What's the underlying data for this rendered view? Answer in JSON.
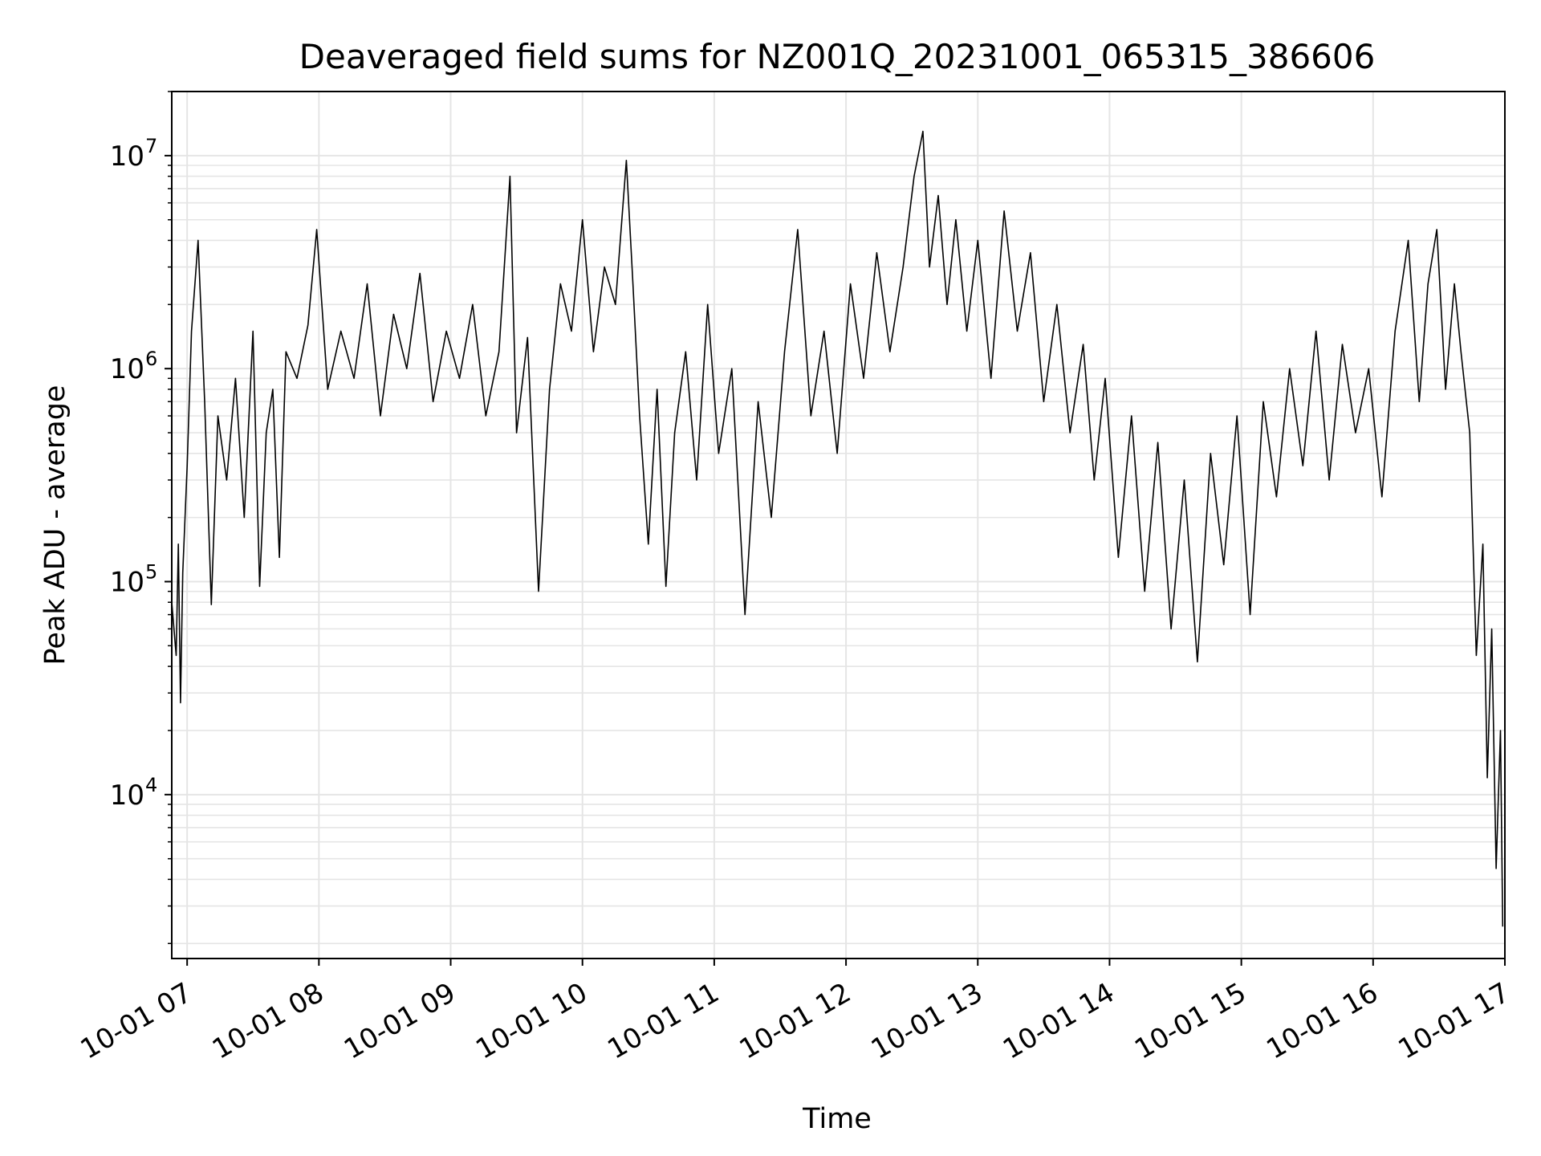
{
  "colors": {
    "line": "#000000",
    "grid": "#e5e5e5",
    "background": "#ffffff"
  },
  "chart_data": {
    "type": "line",
    "title": "Deaveraged field sums for NZ001Q_20231001_065315_386606",
    "xlabel": "Time",
    "ylabel": "Peak ADU - average",
    "yscale": "log",
    "xlim": [
      "2023-10-01 06:53",
      "2023-10-01 17:00"
    ],
    "ylim": [
      1700,
      20000000
    ],
    "grid": true,
    "x_ticks": [
      {
        "value": "2023-10-01 07:00",
        "label": "10-01 07"
      },
      {
        "value": "2023-10-01 08:00",
        "label": "10-01 08"
      },
      {
        "value": "2023-10-01 09:00",
        "label": "10-01 09"
      },
      {
        "value": "2023-10-01 10:00",
        "label": "10-01 10"
      },
      {
        "value": "2023-10-01 11:00",
        "label": "10-01 11"
      },
      {
        "value": "2023-10-01 12:00",
        "label": "10-01 12"
      },
      {
        "value": "2023-10-01 13:00",
        "label": "10-01 13"
      },
      {
        "value": "2023-10-01 14:00",
        "label": "10-01 14"
      },
      {
        "value": "2023-10-01 15:00",
        "label": "10-01 15"
      },
      {
        "value": "2023-10-01 16:00",
        "label": "10-01 16"
      },
      {
        "value": "2023-10-01 17:00",
        "label": "10-01 17"
      }
    ],
    "y_ticks": [
      {
        "value": 10000,
        "base": "10",
        "exp": "4"
      },
      {
        "value": 100000,
        "base": "10",
        "exp": "5"
      },
      {
        "value": 1000000,
        "base": "10",
        "exp": "6"
      },
      {
        "value": 10000000,
        "base": "10",
        "exp": "7"
      }
    ],
    "series": [
      {
        "color": "#000000",
        "points": [
          [
            "2023-10-01 06:53",
            80000
          ],
          [
            "2023-10-01 06:55",
            45000
          ],
          [
            "2023-10-01 06:56",
            150000
          ],
          [
            "2023-10-01 06:57",
            27000
          ],
          [
            "2023-10-01 06:58",
            110000
          ],
          [
            "2023-10-01 07:00",
            350000
          ],
          [
            "2023-10-01 07:02",
            1500000
          ],
          [
            "2023-10-01 07:05",
            4000000
          ],
          [
            "2023-10-01 07:08",
            700000
          ],
          [
            "2023-10-01 07:11",
            78000
          ],
          [
            "2023-10-01 07:14",
            600000
          ],
          [
            "2023-10-01 07:18",
            300000
          ],
          [
            "2023-10-01 07:22",
            900000
          ],
          [
            "2023-10-01 07:26",
            200000
          ],
          [
            "2023-10-01 07:30",
            1500000
          ],
          [
            "2023-10-01 07:33",
            95000
          ],
          [
            "2023-10-01 07:36",
            500000
          ],
          [
            "2023-10-01 07:39",
            800000
          ],
          [
            "2023-10-01 07:42",
            130000
          ],
          [
            "2023-10-01 07:45",
            1200000
          ],
          [
            "2023-10-01 07:50",
            900000
          ],
          [
            "2023-10-01 07:55",
            1600000
          ],
          [
            "2023-10-01 07:59",
            4500000
          ],
          [
            "2023-10-01 08:04",
            800000
          ],
          [
            "2023-10-01 08:10",
            1500000
          ],
          [
            "2023-10-01 08:16",
            900000
          ],
          [
            "2023-10-01 08:22",
            2500000
          ],
          [
            "2023-10-01 08:28",
            600000
          ],
          [
            "2023-10-01 08:34",
            1800000
          ],
          [
            "2023-10-01 08:40",
            1000000
          ],
          [
            "2023-10-01 08:46",
            2800000
          ],
          [
            "2023-10-01 08:52",
            700000
          ],
          [
            "2023-10-01 08:58",
            1500000
          ],
          [
            "2023-10-01 09:04",
            900000
          ],
          [
            "2023-10-01 09:10",
            2000000
          ],
          [
            "2023-10-01 09:16",
            600000
          ],
          [
            "2023-10-01 09:22",
            1200000
          ],
          [
            "2023-10-01 09:27",
            8000000
          ],
          [
            "2023-10-01 09:30",
            500000
          ],
          [
            "2023-10-01 09:35",
            1400000
          ],
          [
            "2023-10-01 09:40",
            90000
          ],
          [
            "2023-10-01 09:45",
            800000
          ],
          [
            "2023-10-01 09:50",
            2500000
          ],
          [
            "2023-10-01 09:55",
            1500000
          ],
          [
            "2023-10-01 10:00",
            5000000
          ],
          [
            "2023-10-01 10:05",
            1200000
          ],
          [
            "2023-10-01 10:10",
            3000000
          ],
          [
            "2023-10-01 10:15",
            2000000
          ],
          [
            "2023-10-01 10:20",
            9500000
          ],
          [
            "2023-10-01 10:23",
            2500000
          ],
          [
            "2023-10-01 10:26",
            600000
          ],
          [
            "2023-10-01 10:30",
            150000
          ],
          [
            "2023-10-01 10:34",
            800000
          ],
          [
            "2023-10-01 10:38",
            95000
          ],
          [
            "2023-10-01 10:42",
            500000
          ],
          [
            "2023-10-01 10:47",
            1200000
          ],
          [
            "2023-10-01 10:52",
            300000
          ],
          [
            "2023-10-01 10:57",
            2000000
          ],
          [
            "2023-10-01 11:02",
            400000
          ],
          [
            "2023-10-01 11:08",
            1000000
          ],
          [
            "2023-10-01 11:14",
            70000
          ],
          [
            "2023-10-01 11:20",
            700000
          ],
          [
            "2023-10-01 11:26",
            200000
          ],
          [
            "2023-10-01 11:32",
            1200000
          ],
          [
            "2023-10-01 11:38",
            4500000
          ],
          [
            "2023-10-01 11:44",
            600000
          ],
          [
            "2023-10-01 11:50",
            1500000
          ],
          [
            "2023-10-01 11:56",
            400000
          ],
          [
            "2023-10-01 12:02",
            2500000
          ],
          [
            "2023-10-01 12:08",
            900000
          ],
          [
            "2023-10-01 12:14",
            3500000
          ],
          [
            "2023-10-01 12:20",
            1200000
          ],
          [
            "2023-10-01 12:26",
            3000000
          ],
          [
            "2023-10-01 12:31",
            8000000
          ],
          [
            "2023-10-01 12:35",
            13000000
          ],
          [
            "2023-10-01 12:38",
            3000000
          ],
          [
            "2023-10-01 12:42",
            6500000
          ],
          [
            "2023-10-01 12:46",
            2000000
          ],
          [
            "2023-10-01 12:50",
            5000000
          ],
          [
            "2023-10-01 12:55",
            1500000
          ],
          [
            "2023-10-01 13:00",
            4000000
          ],
          [
            "2023-10-01 13:06",
            900000
          ],
          [
            "2023-10-01 13:12",
            5500000
          ],
          [
            "2023-10-01 13:18",
            1500000
          ],
          [
            "2023-10-01 13:24",
            3500000
          ],
          [
            "2023-10-01 13:30",
            700000
          ],
          [
            "2023-10-01 13:36",
            2000000
          ],
          [
            "2023-10-01 13:42",
            500000
          ],
          [
            "2023-10-01 13:48",
            1300000
          ],
          [
            "2023-10-01 13:53",
            300000
          ],
          [
            "2023-10-01 13:58",
            900000
          ],
          [
            "2023-10-01 14:04",
            130000
          ],
          [
            "2023-10-01 14:10",
            600000
          ],
          [
            "2023-10-01 14:16",
            90000
          ],
          [
            "2023-10-01 14:22",
            450000
          ],
          [
            "2023-10-01 14:28",
            60000
          ],
          [
            "2023-10-01 14:34",
            300000
          ],
          [
            "2023-10-01 14:40",
            42000
          ],
          [
            "2023-10-01 14:46",
            400000
          ],
          [
            "2023-10-01 14:52",
            120000
          ],
          [
            "2023-10-01 14:58",
            600000
          ],
          [
            "2023-10-01 15:04",
            70000
          ],
          [
            "2023-10-01 15:10",
            700000
          ],
          [
            "2023-10-01 15:16",
            250000
          ],
          [
            "2023-10-01 15:22",
            1000000
          ],
          [
            "2023-10-01 15:28",
            350000
          ],
          [
            "2023-10-01 15:34",
            1500000
          ],
          [
            "2023-10-01 15:40",
            300000
          ],
          [
            "2023-10-01 15:46",
            1300000
          ],
          [
            "2023-10-01 15:52",
            500000
          ],
          [
            "2023-10-01 15:58",
            1000000
          ],
          [
            "2023-10-01 16:04",
            250000
          ],
          [
            "2023-10-01 16:10",
            1500000
          ],
          [
            "2023-10-01 16:16",
            4000000
          ],
          [
            "2023-10-01 16:21",
            700000
          ],
          [
            "2023-10-01 16:25",
            2500000
          ],
          [
            "2023-10-01 16:29",
            4500000
          ],
          [
            "2023-10-01 16:33",
            800000
          ],
          [
            "2023-10-01 16:37",
            2500000
          ],
          [
            "2023-10-01 16:40",
            1200000
          ],
          [
            "2023-10-01 16:44",
            500000
          ],
          [
            "2023-10-01 16:47",
            45000
          ],
          [
            "2023-10-01 16:50",
            150000
          ],
          [
            "2023-10-01 16:52",
            12000
          ],
          [
            "2023-10-01 16:54",
            60000
          ],
          [
            "2023-10-01 16:56",
            4500
          ],
          [
            "2023-10-01 16:58",
            20000
          ],
          [
            "2023-10-01 16:59",
            2400
          ]
        ]
      }
    ]
  }
}
